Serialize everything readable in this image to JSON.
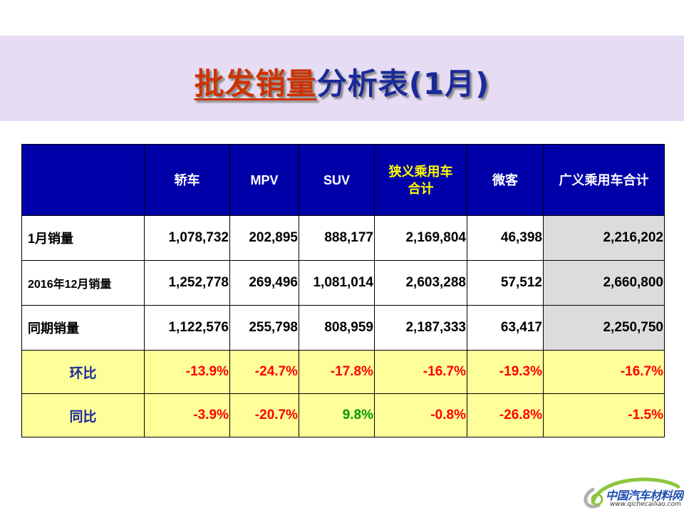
{
  "title": {
    "part1": "批发销量",
    "part2": "分析表(1月)"
  },
  "table": {
    "headers": [
      "",
      "轿车",
      "MPV",
      "SUV",
      "狭义乘用车合计",
      "微客",
      "广义乘用车合计"
    ],
    "rows": [
      {
        "label": "1月销量",
        "values": [
          "1,078,732",
          "202,895",
          "888,177",
          "2,169,804",
          "46,398",
          "2,216,202"
        ]
      },
      {
        "label": "2016年12月销量",
        "values": [
          "1,252,778",
          "269,496",
          "1,081,014",
          "2,603,288",
          "57,512",
          "2,660,800"
        ]
      },
      {
        "label": "同期销量",
        "values": [
          "1,122,576",
          "255,798",
          "808,959",
          "2,187,333",
          "63,417",
          "2,250,750"
        ]
      },
      {
        "label": "环比",
        "values": [
          "-13.9%",
          "-24.7%",
          "-17.8%",
          "-16.7%",
          "-19.3%",
          "-16.7%"
        ]
      },
      {
        "label": "同比",
        "values": [
          "-3.9%",
          "-20.7%",
          "9.8%",
          "-0.8%",
          "-26.8%",
          "-1.5%"
        ]
      }
    ]
  },
  "logo": {
    "name": "中国汽车材料网",
    "url": "www.qichecailiao.com"
  },
  "colors": {
    "banner": "#e6dcf4",
    "title_red": "#cc3300",
    "title_blue": "#1a2a99",
    "header_bg": "#0000a8",
    "header_highlight": "#ffff00",
    "ratio_bg": "#ffff99",
    "negative": "#ff0000",
    "positive": "#009900",
    "total_bg": "#dcdcdc"
  }
}
